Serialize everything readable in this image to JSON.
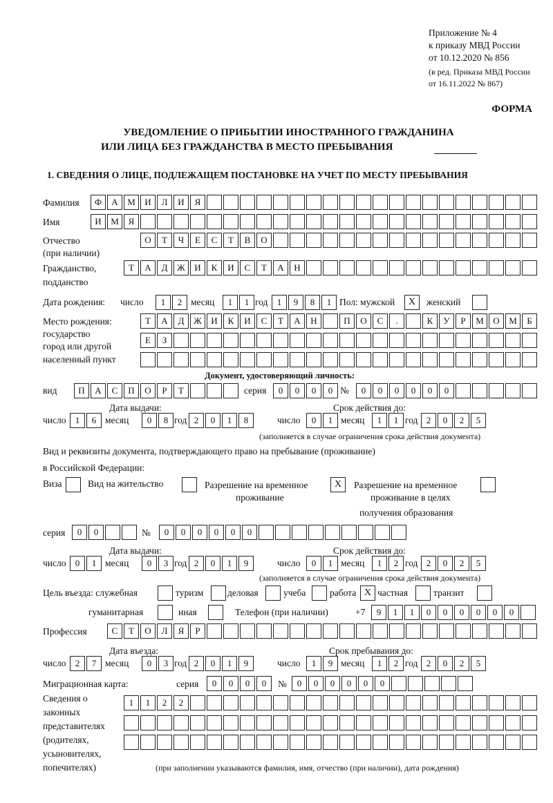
{
  "header": {
    "appendix": "Приложение № 4",
    "order": "к приказу МВД России",
    "order_date": "от 10.12.2020 № 856",
    "rev1": "(в ред. Приказа МВД России",
    "rev2": "от 16.11.2022 № 867)",
    "form": "ФОРМА",
    "title1": "УВЕДОМЛЕНИЕ О ПРИБЫТИИ ИНОСТРАННОГО ГРАЖДАНИНА",
    "title2": "ИЛИ ЛИЦА БЕЗ ГРАЖДАНСТВА В МЕСТО ПРЕБЫВАНИЯ",
    "section1": "1. СВЕДЕНИЯ О ЛИЦЕ, ПОДЛЕЖАЩЕМ ПОСТАНОВКЕ НА УЧЕТ ПО МЕСТУ ПРЕБЫВАНИЯ"
  },
  "labels": {
    "surname": "Фамилия",
    "name": "Имя",
    "patronymic": "Отчество",
    "patronymic2": "(при наличии)",
    "citizenship": "Гражданство,",
    "citizenship2": "подданство",
    "dob": "Дата рождения:",
    "day": "число",
    "month": "месяц",
    "year": "год",
    "sex": "Пол: мужской",
    "female": "женский",
    "pob": "Место рождения:",
    "pob2": "государство",
    "pob3": "город или другой",
    "pob4": "населенный пункт",
    "id_doc": "Документ, удостоверяющий личность:",
    "kind": "вид",
    "series": "серия",
    "number": "№",
    "issue_date": "Дата выдачи:",
    "valid_until": "Срок действия до:",
    "valid_note": "(заполняется в случае ограничения срока действия документа)",
    "right_doc1": "Вид и реквизиты документа, подтверждающего право на пребывание (проживание)",
    "right_doc2": "в Российской Федерации:",
    "visa": "Виза",
    "residence": "Вид на жительство",
    "trp": "Разрешение на временное",
    "trp2": "проживание",
    "trp_edu": "Разрешение на временное",
    "trp_edu2": "проживание в целях",
    "trp_edu3": "получения образования",
    "purpose": "Цель въезда: служебная",
    "tourism": "туризм",
    "business": "деловая",
    "study": "учеба",
    "work": "работа",
    "private": "частная",
    "transit": "транзит",
    "humanitarian": "гуманитарная",
    "other": "иная",
    "phone": "Телефон (при наличии)",
    "phone_prefix": "+7",
    "profession": "Профессия",
    "entry_date": "Дата въезда:",
    "stay_until": "Срок пребывания до:",
    "migration_card": "Миграционная карта:",
    "reps1": "Сведения о",
    "reps2": "законных",
    "reps3": "представителях",
    "reps4": "(родителях,",
    "reps5": "усыновителях,",
    "reps6": "попечителях)",
    "reps_note": "(при заполнении указываются фамилия, имя, отчество (при наличии), дата рождения)"
  },
  "values": {
    "surname": "ФАМИЛИЯ",
    "name": "ИМЯ",
    "patronymic": "ОТЧЕСТВО",
    "citizenship": "ТАДЖИКИСТАН",
    "dob_day": "12",
    "dob_month": "11",
    "dob_year": "1981",
    "male": "X",
    "female": "",
    "pob1": "ТАДЖИКИСТАН ПОС. КУРМОМБ",
    "pob2": "ЕЗ",
    "pob3": "",
    "id_kind": "ПАСПОРТ",
    "id_series": "0000",
    "id_number": "000000",
    "id_issue_day": "16",
    "id_issue_month": "08",
    "id_issue_year": "2018",
    "id_valid_day": "01",
    "id_valid_month": "11",
    "id_valid_year": "2025",
    "visa": "",
    "residence": "",
    "trp": "X",
    "trp_edu": "",
    "rd_series": "00",
    "rd_number": "000000",
    "rd_issue_day": "01",
    "rd_issue_month": "03",
    "rd_issue_year": "2019",
    "rd_valid_day": "01",
    "rd_valid_month": "12",
    "rd_valid_year": "2025",
    "p_official": "",
    "p_tourism": "",
    "p_business": "",
    "p_study": "",
    "p_work": "X",
    "p_private": "",
    "p_transit": "",
    "p_humanitarian": "",
    "p_other": "",
    "phone": "911000000",
    "profession": "СТОЛЯР",
    "entry_day": "27",
    "entry_month": "03",
    "entry_year": "2019",
    "stay_day": "19",
    "stay_month": "12",
    "stay_year": "2025",
    "mc_series": "0000",
    "mc_number": "000000",
    "reps1": "1122",
    "reps2": "",
    "reps3": ""
  }
}
